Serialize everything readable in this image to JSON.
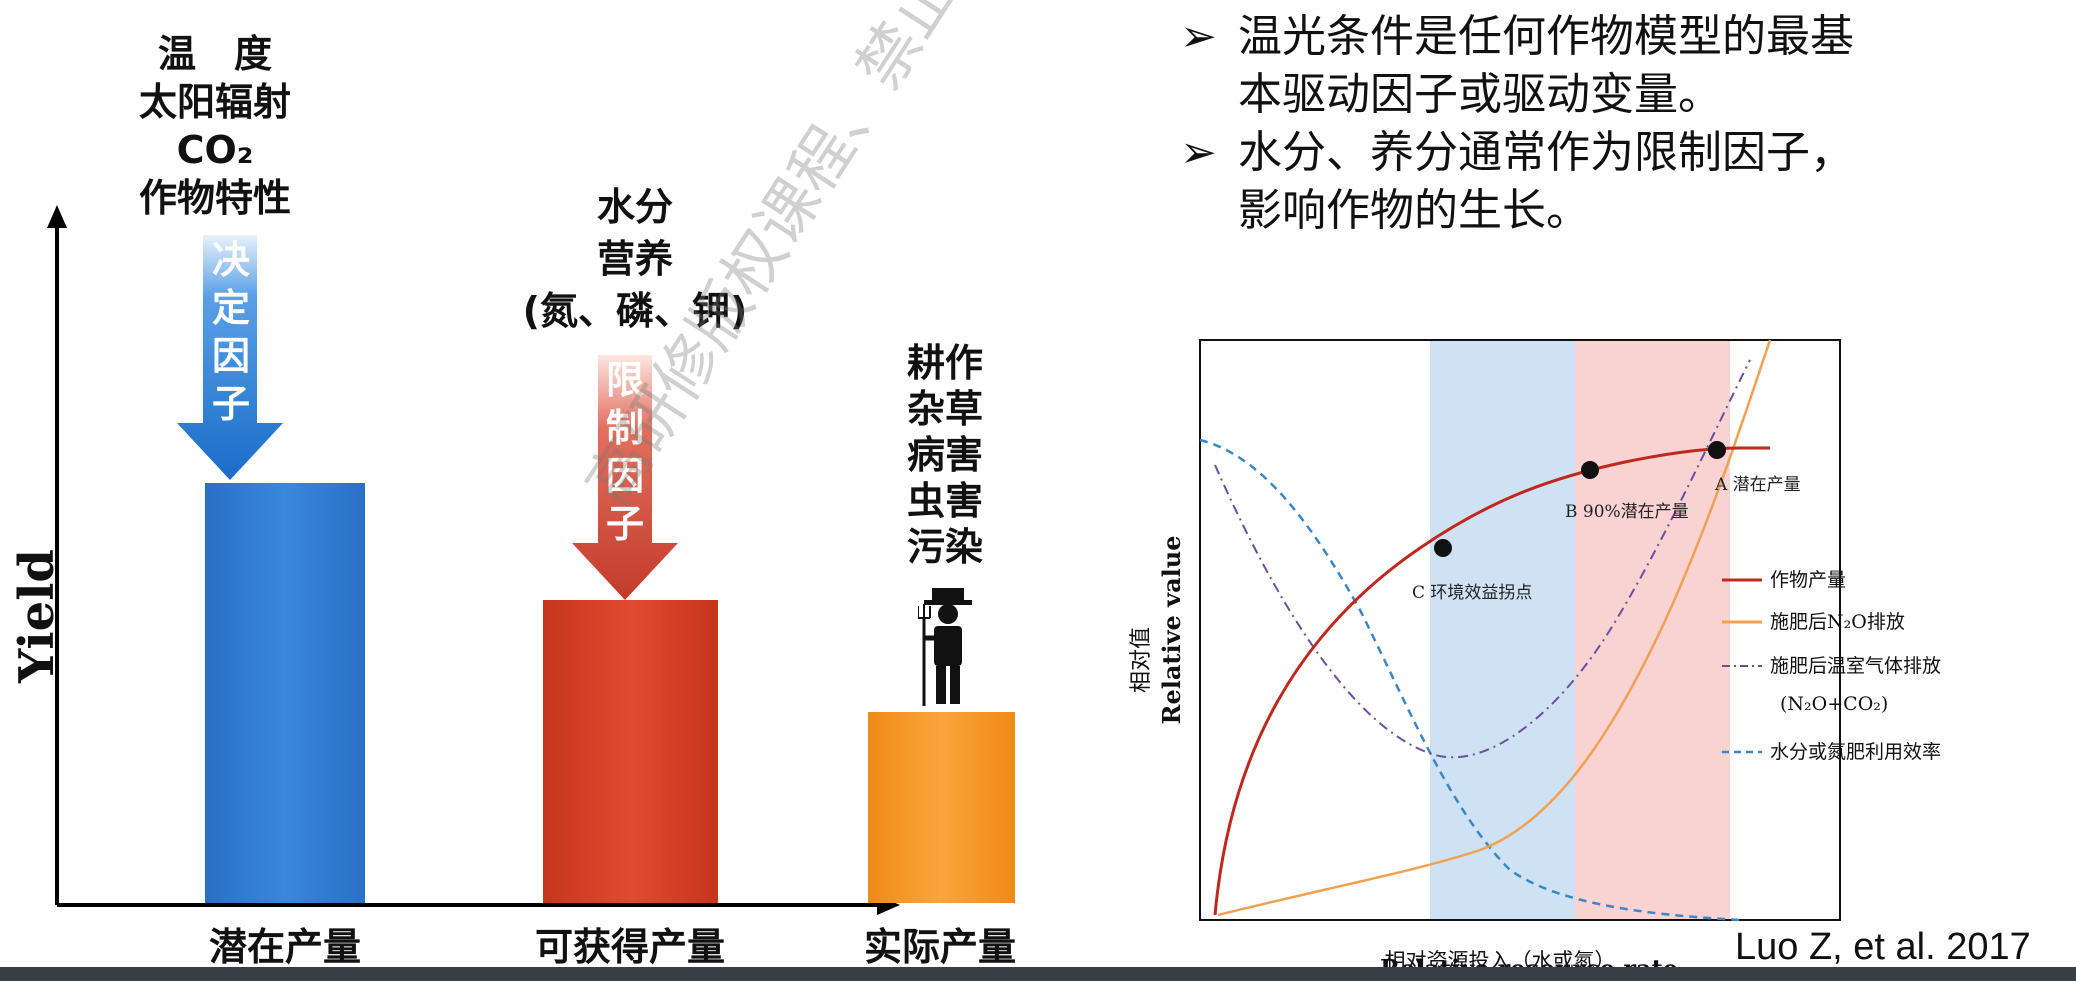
{
  "left": {
    "yaxis_label": "Yield",
    "top_factors": [
      "温　度",
      "太阳辐射",
      "CO₂",
      "作物特性"
    ],
    "arrow1_text": "决\n定\n因\n子",
    "mid_factors": [
      "水分",
      "营养",
      "(氮、磷、钾)"
    ],
    "arrow2_text": "限\n制\n因\n子",
    "right_factors": [
      "耕作",
      "杂草",
      "病害",
      "虫害",
      "污染"
    ],
    "bars": [
      {
        "label": "潜在产量",
        "color": "#2f79cf"
      },
      {
        "label": "可获得产量",
        "color": "#d13b22"
      },
      {
        "label": "实际产量",
        "color": "#f49220"
      }
    ]
  },
  "bullets": [
    "温光条件是任何作物模型的最基本驱动因子或驱动变量。",
    "水分、养分通常作为限制因子，影响作物的生长。"
  ],
  "bullet_lines": [
    [
      "温光条件是任何作物模型的最基",
      "本驱动因子或驱动变量。"
    ],
    [
      "水分、养分通常作为限制因子，",
      "影响作物的生长。"
    ]
  ],
  "graph": {
    "ylabel_cn": "相对值",
    "ylabel_en": "Relative value",
    "xlabel_cn": "相对资源投入（水或氮）",
    "xlabel_en": "Relative resource rate",
    "point_a": "A 潜在产量",
    "point_b": "B 90%潜在产量",
    "point_c": "C 环境效益拐点",
    "legend": [
      {
        "label": "作物产量",
        "color": "#c0281e",
        "style": "solid"
      },
      {
        "label": "施肥后N₂O排放",
        "color": "#f0a050",
        "style": "solid"
      },
      {
        "label": "施肥后温室气体排放",
        "color": "#6a4fa0",
        "style": "dashdot"
      },
      {
        "label": "(N₂O+CO₂)",
        "color": "",
        "style": "none"
      },
      {
        "label": "水分或氮肥利用效率",
        "color": "#3a86c8",
        "style": "dashed"
      }
    ]
  },
  "citation": "Luo Z, et al. 2017",
  "watermark": "高研修版权课程、禁止转载传播"
}
